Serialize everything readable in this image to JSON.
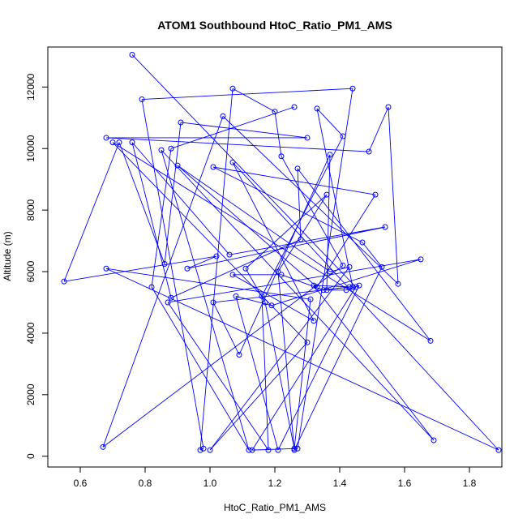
{
  "chart_data": {
    "type": "line",
    "title": "ATOM1 Southbound HtoC_Ratio_PM1_AMS",
    "xlabel": "HtoC_Ratio_PM1_AMS",
    "ylabel": "Altitude (m)",
    "xlim": [
      0.5,
      1.9
    ],
    "ylim": [
      -350,
      13300
    ],
    "xticks": [
      "0.6",
      "0.8",
      "1.0",
      "1.2",
      "1.4",
      "1.6",
      "1.8"
    ],
    "xtick_values": [
      0.6,
      0.8,
      1.0,
      1.2,
      1.4,
      1.6,
      1.8
    ],
    "yticks": [
      "0",
      "2000",
      "4000",
      "6000",
      "8000",
      "10000",
      "12000"
    ],
    "ytick_values": [
      0,
      2000,
      4000,
      6000,
      8000,
      10000,
      12000
    ],
    "grid": false,
    "marker": "open-circle",
    "color": "#0000ff",
    "series": [
      {
        "name": "",
        "x": [
          0.76,
          1.45,
          1.13,
          1.27,
          1.44,
          0.79,
          0.98,
          0.97,
          1.07,
          1.2,
          1.22,
          1.41,
          0.67,
          1.04,
          1.58,
          1.55,
          1.49,
          0.68,
          1.3,
          0.91,
          0.86,
          0.72,
          0.55,
          1.02,
          0.93,
          1.54,
          1.06,
          0.76,
          0.88,
          1.28,
          1.27,
          1.68,
          0.7,
          1.3,
          1.0,
          1.43,
          1.37,
          0.9,
          1.33,
          1.51,
          1.01,
          1.47,
          1.53,
          1.26,
          1.21,
          1.36,
          1.11,
          1.17,
          1.26,
          1.31,
          0.68,
          1.89,
          1.07,
          1.32,
          1.07,
          1.22,
          1.35,
          1.43,
          1.01,
          1.09,
          1.37,
          1.36,
          1.42,
          1.46,
          1.21,
          1.08,
          1.19,
          1.65,
          0.87,
          1.18,
          1.16,
          1.41,
          1.33,
          1.44,
          1.32,
          1.69,
          0.85,
          1.12,
          0.82,
          0.88,
          1.26
        ],
        "y": [
          13050,
          5500,
          200,
          250,
          11950,
          11600,
          250,
          200,
          11950,
          11200,
          9750,
          6200,
          300,
          11050,
          5600,
          11350,
          9900,
          10350,
          10350,
          10850,
          6250,
          10200,
          5680,
          6500,
          6100,
          7450,
          6550,
          10200,
          5150,
          7050,
          9350,
          3750,
          10200,
          3700,
          200,
          6150,
          6000,
          9450,
          5500,
          8500,
          9400,
          6950,
          6150,
          200,
          6000,
          8500,
          6100,
          5000,
          250,
          5100,
          6100,
          200,
          9550,
          4400,
          5900,
          5900,
          5400,
          5500,
          5000,
          3300,
          9800,
          5400,
          5400,
          5550,
          200,
          5200,
          4900,
          6400,
          5000,
          200,
          5200,
          10400,
          11300,
          5500,
          5550,
          520,
          9950,
          200,
          5500,
          10000,
          11350
        ]
      }
    ]
  }
}
